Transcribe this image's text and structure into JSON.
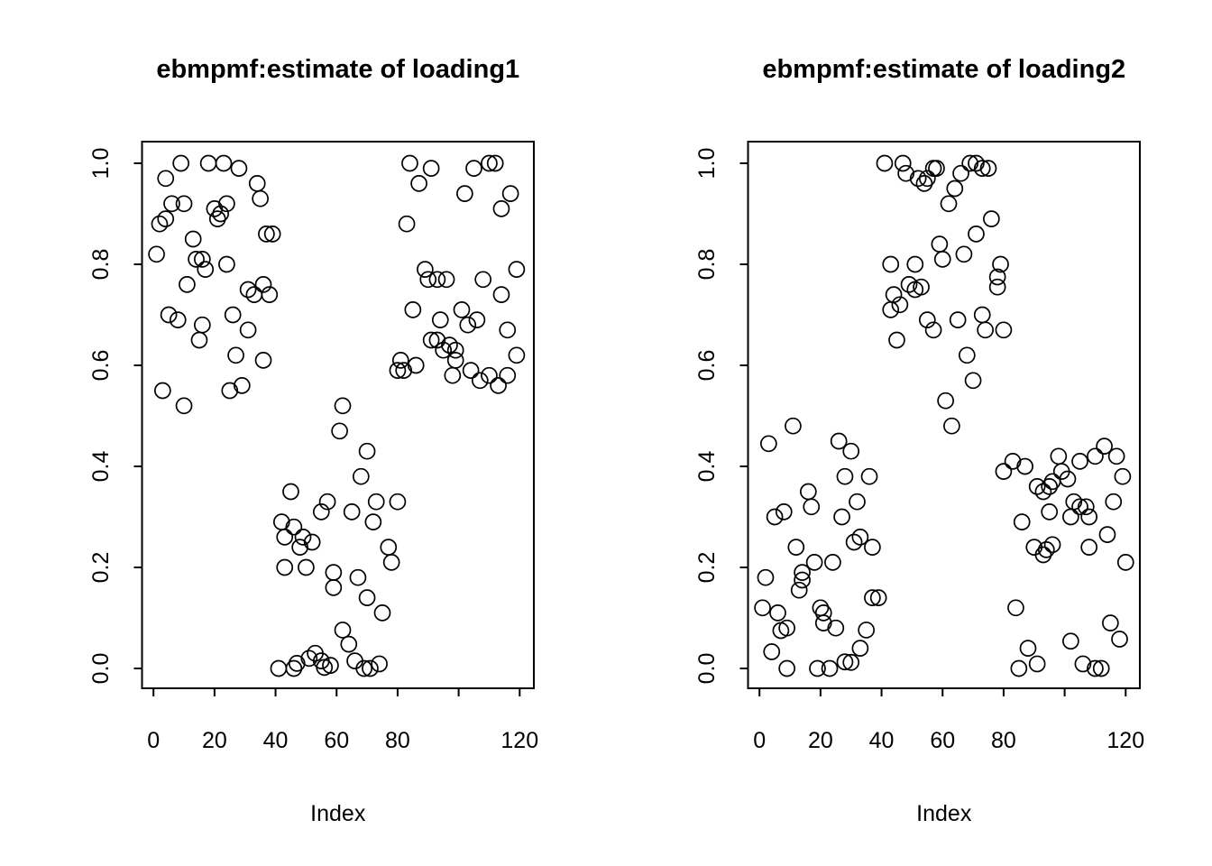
{
  "figure": {
    "background": "#ffffff",
    "stroke_color": "#000000",
    "marker": "open-circle"
  },
  "chart_data": [
    {
      "type": "scatter",
      "title": "ebmpmf:estimate of loading1",
      "xlabel": "Index",
      "ylabel": "",
      "legend": "none",
      "grid": false,
      "xlim": [
        -3.8,
        124.8
      ],
      "ylim": [
        -0.04,
        1.04
      ],
      "x_ticks": [
        0,
        20,
        40,
        60,
        80,
        100,
        120
      ],
      "x_tick_labels": [
        "0",
        "20",
        "40",
        "60",
        "80",
        "",
        "120"
      ],
      "y_ticks": [
        0.0,
        0.2,
        0.4,
        0.6,
        0.8,
        1.0
      ],
      "y_tick_labels": [
        "0.0",
        "0.2",
        "0.4",
        "0.6",
        "0.8",
        "1.0"
      ],
      "points": [
        [
          9,
          1
        ],
        [
          4,
          0.97
        ],
        [
          18,
          1
        ],
        [
          23,
          1
        ],
        [
          28,
          0.99
        ],
        [
          34,
          0.96
        ],
        [
          6,
          0.92
        ],
        [
          10,
          0.92
        ],
        [
          4,
          0.89
        ],
        [
          2,
          0.88
        ],
        [
          20,
          0.91
        ],
        [
          24,
          0.92
        ],
        [
          21,
          0.89
        ],
        [
          22,
          0.9
        ],
        [
          35,
          0.93
        ],
        [
          37,
          0.86
        ],
        [
          39,
          0.86
        ],
        [
          13,
          0.85
        ],
        [
          1,
          0.82
        ],
        [
          14,
          0.81
        ],
        [
          16,
          0.81
        ],
        [
          17,
          0.79
        ],
        [
          24,
          0.8
        ],
        [
          11,
          0.76
        ],
        [
          31,
          0.75
        ],
        [
          33,
          0.74
        ],
        [
          36,
          0.76
        ],
        [
          38,
          0.74
        ],
        [
          5,
          0.7
        ],
        [
          8,
          0.69
        ],
        [
          16,
          0.68
        ],
        [
          15,
          0.65
        ],
        [
          26,
          0.7
        ],
        [
          31,
          0.67
        ],
        [
          27,
          0.62
        ],
        [
          36,
          0.61
        ],
        [
          3,
          0.55
        ],
        [
          10,
          0.52
        ],
        [
          25,
          0.55
        ],
        [
          29,
          0.56
        ],
        [
          62,
          0.52
        ],
        [
          61,
          0.47
        ],
        [
          70,
          0.43
        ],
        [
          68,
          0.38
        ],
        [
          45,
          0.35
        ],
        [
          57,
          0.33
        ],
        [
          55,
          0.31
        ],
        [
          65,
          0.31
        ],
        [
          73,
          0.33
        ],
        [
          80,
          0.33
        ],
        [
          72,
          0.29
        ],
        [
          42,
          0.29
        ],
        [
          46,
          0.28
        ],
        [
          43,
          0.26
        ],
        [
          49,
          0.26
        ],
        [
          52,
          0.25
        ],
        [
          48,
          0.24
        ],
        [
          77,
          0.24
        ],
        [
          43,
          0.2
        ],
        [
          50,
          0.2
        ],
        [
          59,
          0.19
        ],
        [
          59,
          0.16
        ],
        [
          67,
          0.18
        ],
        [
          70,
          0.14
        ],
        [
          75,
          0.11
        ],
        [
          78,
          0.21
        ],
        [
          41,
          0
        ],
        [
          46,
          0
        ],
        [
          47,
          0.01
        ],
        [
          51,
          0.02
        ],
        [
          53,
          0.03
        ],
        [
          55,
          0.015
        ],
        [
          58,
          0.006
        ],
        [
          62,
          0.076
        ],
        [
          64,
          0.048
        ],
        [
          66,
          0.015
        ],
        [
          69,
          0
        ],
        [
          71,
          0
        ],
        [
          74,
          0.009
        ],
        [
          56,
          0.002
        ],
        [
          84,
          1
        ],
        [
          91,
          0.99
        ],
        [
          87,
          0.96
        ],
        [
          83,
          0.88
        ],
        [
          105,
          0.99
        ],
        [
          110,
          1
        ],
        [
          112,
          1
        ],
        [
          102,
          0.94
        ],
        [
          117,
          0.94
        ],
        [
          114,
          0.91
        ],
        [
          89,
          0.79
        ],
        [
          90,
          0.77
        ],
        [
          93,
          0.77
        ],
        [
          96,
          0.77
        ],
        [
          108,
          0.77
        ],
        [
          119,
          0.79
        ],
        [
          114,
          0.74
        ],
        [
          85,
          0.71
        ],
        [
          94,
          0.69
        ],
        [
          101,
          0.71
        ],
        [
          103,
          0.68
        ],
        [
          106,
          0.69
        ],
        [
          116,
          0.67
        ],
        [
          91,
          0.65
        ],
        [
          93,
          0.65
        ],
        [
          97,
          0.64
        ],
        [
          99,
          0.63
        ],
        [
          95,
          0.63
        ],
        [
          99,
          0.61
        ],
        [
          81,
          0.61
        ],
        [
          82,
          0.59
        ],
        [
          80,
          0.59
        ],
        [
          86,
          0.6
        ],
        [
          98,
          0.58
        ],
        [
          104,
          0.59
        ],
        [
          110,
          0.58
        ],
        [
          113,
          0.56
        ],
        [
          116,
          0.58
        ],
        [
          119,
          0.62
        ],
        [
          107,
          0.57
        ]
      ]
    },
    {
      "type": "scatter",
      "title": "ebmpmf:estimate of loading2",
      "xlabel": "Index",
      "ylabel": "",
      "legend": "none",
      "grid": false,
      "xlim": [
        -3.8,
        124.8
      ],
      "ylim": [
        -0.04,
        1.04
      ],
      "x_ticks": [
        0,
        20,
        40,
        60,
        80,
        100,
        120
      ],
      "x_tick_labels": [
        "0",
        "20",
        "40",
        "60",
        "80",
        "",
        "120"
      ],
      "y_ticks": [
        0.0,
        0.2,
        0.4,
        0.6,
        0.8,
        1.0
      ],
      "y_tick_labels": [
        "0.0",
        "0.2",
        "0.4",
        "0.6",
        "0.8",
        "1.0"
      ],
      "points": [
        [
          2,
          0.18
        ],
        [
          18,
          0.21
        ],
        [
          24,
          0.21
        ],
        [
          14,
          0.19
        ],
        [
          14,
          0.175
        ],
        [
          13,
          0.155
        ],
        [
          1,
          0.12
        ],
        [
          6,
          0.11
        ],
        [
          7,
          0.075
        ],
        [
          9,
          0.08
        ],
        [
          20,
          0.12
        ],
        [
          21,
          0.11
        ],
        [
          21,
          0.09
        ],
        [
          25,
          0.08
        ],
        [
          35,
          0.076
        ],
        [
          37,
          0.14
        ],
        [
          39,
          0.14
        ],
        [
          33,
          0.04
        ],
        [
          28,
          0.013
        ],
        [
          4,
          0.033
        ],
        [
          9,
          0
        ],
        [
          19,
          0
        ],
        [
          23,
          0
        ],
        [
          30,
          0.012
        ],
        [
          3,
          0.445
        ],
        [
          26,
          0.45
        ],
        [
          30,
          0.43
        ],
        [
          28,
          0.38
        ],
        [
          36,
          0.38
        ],
        [
          16,
          0.35
        ],
        [
          32,
          0.33
        ],
        [
          17,
          0.32
        ],
        [
          5,
          0.3
        ],
        [
          8,
          0.31
        ],
        [
          27,
          0.3
        ],
        [
          12,
          0.24
        ],
        [
          31,
          0.25
        ],
        [
          33,
          0.26
        ],
        [
          37,
          0.24
        ],
        [
          11,
          0.48
        ],
        [
          41,
          1
        ],
        [
          47,
          1
        ],
        [
          48,
          0.98
        ],
        [
          52,
          0.97
        ],
        [
          54,
          0.96
        ],
        [
          55,
          0.97
        ],
        [
          57,
          0.99
        ],
        [
          58,
          0.99
        ],
        [
          66,
          0.98
        ],
        [
          69,
          1
        ],
        [
          71,
          1
        ],
        [
          73,
          0.99
        ],
        [
          75,
          0.99
        ],
        [
          64,
          0.95
        ],
        [
          62,
          0.92
        ],
        [
          76,
          0.89
        ],
        [
          71,
          0.86
        ],
        [
          59,
          0.84
        ],
        [
          60,
          0.81
        ],
        [
          67,
          0.82
        ],
        [
          43,
          0.8
        ],
        [
          51,
          0.8
        ],
        [
          79,
          0.8
        ],
        [
          78,
          0.775
        ],
        [
          78,
          0.755
        ],
        [
          49,
          0.76
        ],
        [
          53,
          0.755
        ],
        [
          51,
          0.75
        ],
        [
          44,
          0.74
        ],
        [
          46,
          0.72
        ],
        [
          43,
          0.71
        ],
        [
          55,
          0.69
        ],
        [
          57,
          0.67
        ],
        [
          65,
          0.69
        ],
        [
          73,
          0.7
        ],
        [
          74,
          0.67
        ],
        [
          80,
          0.67
        ],
        [
          45,
          0.65
        ],
        [
          68,
          0.62
        ],
        [
          70,
          0.57
        ],
        [
          61,
          0.53
        ],
        [
          63,
          0.48
        ],
        [
          80,
          0.39
        ],
        [
          83,
          0.41
        ],
        [
          87,
          0.4
        ],
        [
          98,
          0.42
        ],
        [
          105,
          0.41
        ],
        [
          110,
          0.42
        ],
        [
          113,
          0.44
        ],
        [
          117,
          0.42
        ],
        [
          119,
          0.38
        ],
        [
          96,
          0.37
        ],
        [
          99,
          0.39
        ],
        [
          101,
          0.375
        ],
        [
          91,
          0.36
        ],
        [
          93,
          0.35
        ],
        [
          95,
          0.36
        ],
        [
          103,
          0.33
        ],
        [
          105,
          0.32
        ],
        [
          107,
          0.32
        ],
        [
          102,
          0.3
        ],
        [
          108,
          0.3
        ],
        [
          95,
          0.31
        ],
        [
          86,
          0.29
        ],
        [
          116,
          0.33
        ],
        [
          114,
          0.265
        ],
        [
          90,
          0.24
        ],
        [
          94,
          0.235
        ],
        [
          96,
          0.245
        ],
        [
          108,
          0.24
        ],
        [
          93,
          0.225
        ],
        [
          84,
          0.12
        ],
        [
          88,
          0.04
        ],
        [
          85,
          0
        ],
        [
          91,
          0.009
        ],
        [
          102,
          0.054
        ],
        [
          106,
          0.009
        ],
        [
          110,
          0
        ],
        [
          112,
          0
        ],
        [
          115,
          0.09
        ],
        [
          118,
          0.058
        ],
        [
          120,
          0.21
        ]
      ]
    }
  ]
}
